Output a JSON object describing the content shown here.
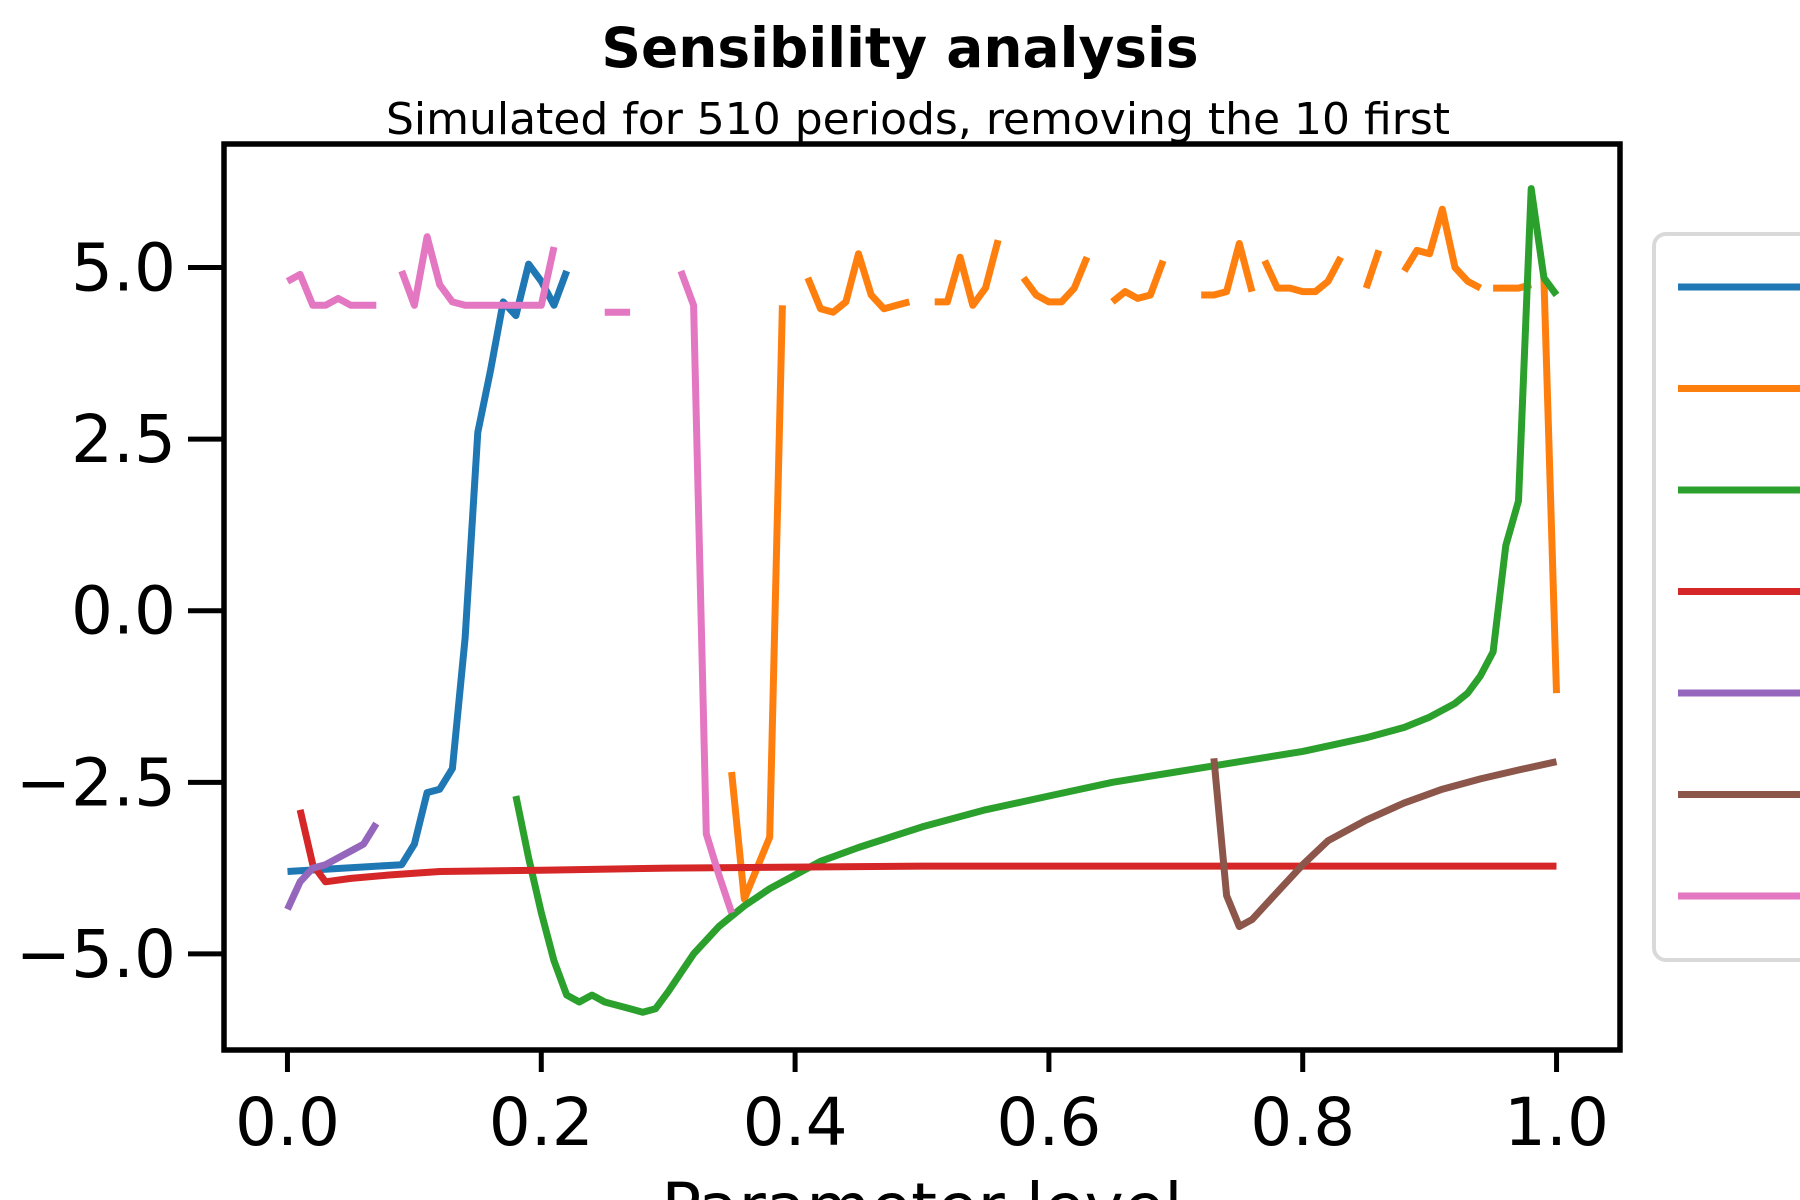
{
  "chart_data": {
    "type": "line",
    "title": "Sensibility analysis",
    "subtitle": "Simulated for 510 periods, removing the 10 first",
    "xlabel": "Parameter level",
    "ylabel": "",
    "xlim": [
      -0.05,
      1.05
    ],
    "ylim": [
      -6.4,
      6.8
    ],
    "x_ticks": [
      0.0,
      0.2,
      0.4,
      0.6,
      0.8,
      1.0
    ],
    "x_tick_labels": [
      "0.0",
      "0.2",
      "0.4",
      "0.6",
      "0.8",
      "1.0"
    ],
    "y_ticks": [
      5.0,
      2.5,
      0.0,
      -2.5,
      -5.0
    ],
    "y_tick_labels": [
      "5.0",
      "2.5",
      "0.0",
      "−2.5",
      "−5.0"
    ],
    "grid": false,
    "legend": {
      "placement": "right-outside",
      "entries": [
        "",
        "",
        "",
        "",
        "",
        "",
        ""
      ]
    },
    "series": [
      {
        "color": "#1f77b4",
        "segments": [
          [
            [
              0.0,
              -3.8
            ],
            [
              0.09,
              -3.7
            ],
            [
              0.1,
              -3.4
            ],
            [
              0.11,
              -2.65
            ],
            [
              0.12,
              -2.6
            ],
            [
              0.13,
              -2.3
            ],
            [
              0.14,
              -0.4
            ],
            [
              0.15,
              2.6
            ],
            [
              0.16,
              3.5
            ],
            [
              0.17,
              4.5
            ],
            [
              0.18,
              4.3
            ],
            [
              0.19,
              5.05
            ],
            [
              0.2,
              4.8
            ],
            [
              0.21,
              4.45
            ],
            [
              0.22,
              4.95
            ]
          ]
        ]
      },
      {
        "color": "#ff7f0e",
        "segments": [
          [
            [
              0.35,
              -2.35
            ],
            [
              0.36,
              -4.2
            ],
            [
              0.38,
              -3.3
            ],
            [
              0.39,
              4.45
            ]
          ],
          [
            [
              0.41,
              4.85
            ],
            [
              0.42,
              4.4
            ],
            [
              0.43,
              4.35
            ],
            [
              0.44,
              4.5
            ],
            [
              0.45,
              5.2
            ],
            [
              0.46,
              4.6
            ],
            [
              0.47,
              4.4
            ],
            [
              0.48,
              4.45
            ],
            [
              0.49,
              4.5
            ]
          ],
          [
            [
              0.51,
              4.5
            ],
            [
              0.52,
              4.5
            ],
            [
              0.53,
              5.15
            ],
            [
              0.54,
              4.45
            ],
            [
              0.55,
              4.7
            ],
            [
              0.56,
              5.4
            ]
          ],
          [
            [
              0.58,
              4.85
            ],
            [
              0.59,
              4.6
            ],
            [
              0.6,
              4.5
            ],
            [
              0.61,
              4.5
            ],
            [
              0.62,
              4.7
            ],
            [
              0.63,
              5.15
            ]
          ],
          [
            [
              0.65,
              4.5
            ],
            [
              0.66,
              4.65
            ],
            [
              0.67,
              4.55
            ],
            [
              0.68,
              4.6
            ],
            [
              0.69,
              5.1
            ]
          ],
          [
            [
              0.72,
              4.6
            ],
            [
              0.73,
              4.6
            ],
            [
              0.74,
              4.65
            ],
            [
              0.75,
              5.35
            ],
            [
              0.76,
              4.65
            ]
          ],
          [
            [
              0.77,
              5.1
            ],
            [
              0.78,
              4.7
            ],
            [
              0.79,
              4.7
            ],
            [
              0.8,
              4.65
            ],
            [
              0.81,
              4.65
            ],
            [
              0.82,
              4.8
            ],
            [
              0.83,
              5.15
            ]
          ],
          [
            [
              0.85,
              4.7
            ],
            [
              0.86,
              5.25
            ]
          ],
          [
            [
              0.88,
              4.95
            ],
            [
              0.89,
              5.25
            ],
            [
              0.9,
              5.2
            ],
            [
              0.91,
              5.85
            ],
            [
              0.92,
              5.0
            ],
            [
              0.93,
              4.8
            ],
            [
              0.94,
              4.7
            ]
          ],
          [
            [
              0.95,
              4.7
            ],
            [
              0.96,
              4.7
            ],
            [
              0.97,
              4.7
            ],
            [
              0.98,
              4.75
            ]
          ],
          [
            [
              0.99,
              4.85
            ],
            [
              1.0,
              -1.2
            ]
          ]
        ]
      },
      {
        "color": "#2ca02c",
        "segments": [
          [
            [
              0.18,
              -2.7
            ],
            [
              0.19,
              -3.6
            ],
            [
              0.2,
              -4.4
            ],
            [
              0.21,
              -5.1
            ],
            [
              0.22,
              -5.6
            ],
            [
              0.23,
              -5.7
            ],
            [
              0.24,
              -5.6
            ],
            [
              0.25,
              -5.7
            ],
            [
              0.26,
              -5.75
            ],
            [
              0.27,
              -5.8
            ],
            [
              0.28,
              -5.85
            ],
            [
              0.29,
              -5.8
            ],
            [
              0.3,
              -5.55
            ],
            [
              0.32,
              -5.0
            ],
            [
              0.34,
              -4.6
            ],
            [
              0.36,
              -4.3
            ],
            [
              0.38,
              -4.05
            ],
            [
              0.4,
              -3.85
            ],
            [
              0.42,
              -3.65
            ],
            [
              0.45,
              -3.45
            ],
            [
              0.5,
              -3.15
            ],
            [
              0.55,
              -2.9
            ],
            [
              0.6,
              -2.7
            ],
            [
              0.65,
              -2.5
            ],
            [
              0.7,
              -2.35
            ],
            [
              0.75,
              -2.2
            ],
            [
              0.8,
              -2.05
            ],
            [
              0.85,
              -1.85
            ],
            [
              0.88,
              -1.7
            ],
            [
              0.9,
              -1.55
            ],
            [
              0.92,
              -1.35
            ],
            [
              0.93,
              -1.2
            ],
            [
              0.94,
              -0.95
            ],
            [
              0.95,
              -0.6
            ],
            [
              0.96,
              0.95
            ],
            [
              0.97,
              1.6
            ],
            [
              0.98,
              6.15
            ],
            [
              0.99,
              4.85
            ],
            [
              1.0,
              4.6
            ]
          ]
        ]
      },
      {
        "color": "#d62728",
        "segments": [
          [
            [
              0.01,
              -2.9
            ],
            [
              0.02,
              -3.7
            ],
            [
              0.03,
              -3.95
            ],
            [
              0.05,
              -3.9
            ],
            [
              0.08,
              -3.85
            ],
            [
              0.12,
              -3.8
            ],
            [
              0.2,
              -3.78
            ],
            [
              0.3,
              -3.75
            ],
            [
              0.5,
              -3.72
            ],
            [
              0.7,
              -3.72
            ],
            [
              1.0,
              -3.72
            ]
          ]
        ]
      },
      {
        "color": "#9467bd",
        "segments": [
          [
            [
              0.0,
              -4.35
            ],
            [
              0.01,
              -3.95
            ],
            [
              0.02,
              -3.75
            ],
            [
              0.03,
              -3.7
            ],
            [
              0.04,
              -3.6
            ],
            [
              0.05,
              -3.5
            ],
            [
              0.06,
              -3.4
            ],
            [
              0.07,
              -3.1
            ]
          ]
        ]
      },
      {
        "color": "#8c564b",
        "segments": [
          [
            [
              0.73,
              -2.15
            ],
            [
              0.74,
              -4.15
            ],
            [
              0.75,
              -4.6
            ],
            [
              0.76,
              -4.5
            ],
            [
              0.78,
              -4.1
            ],
            [
              0.8,
              -3.7
            ],
            [
              0.82,
              -3.35
            ],
            [
              0.85,
              -3.05
            ],
            [
              0.88,
              -2.8
            ],
            [
              0.91,
              -2.6
            ],
            [
              0.94,
              -2.45
            ],
            [
              0.97,
              -2.32
            ],
            [
              1.0,
              -2.2
            ]
          ]
        ]
      },
      {
        "color": "#e377c2",
        "segments": [
          [
            [
              0.0,
              4.8
            ],
            [
              0.01,
              4.9
            ],
            [
              0.02,
              4.45
            ],
            [
              0.03,
              4.45
            ],
            [
              0.04,
              4.55
            ],
            [
              0.05,
              4.45
            ],
            [
              0.06,
              4.45
            ],
            [
              0.07,
              4.45
            ]
          ],
          [
            [
              0.09,
              4.95
            ],
            [
              0.1,
              4.45
            ],
            [
              0.11,
              5.45
            ],
            [
              0.12,
              4.75
            ],
            [
              0.13,
              4.5
            ],
            [
              0.14,
              4.45
            ],
            [
              0.15,
              4.45
            ],
            [
              0.16,
              4.45
            ],
            [
              0.17,
              4.45
            ],
            [
              0.18,
              4.45
            ],
            [
              0.19,
              4.45
            ],
            [
              0.2,
              4.45
            ],
            [
              0.21,
              5.3
            ]
          ],
          [
            [
              0.25,
              4.35
            ],
            [
              0.26,
              4.35
            ],
            [
              0.27,
              4.35
            ]
          ],
          [
            [
              0.31,
              4.95
            ],
            [
              0.32,
              4.45
            ],
            [
              0.33,
              -3.25
            ],
            [
              0.34,
              -3.85
            ],
            [
              0.35,
              -4.4
            ]
          ]
        ]
      }
    ]
  }
}
